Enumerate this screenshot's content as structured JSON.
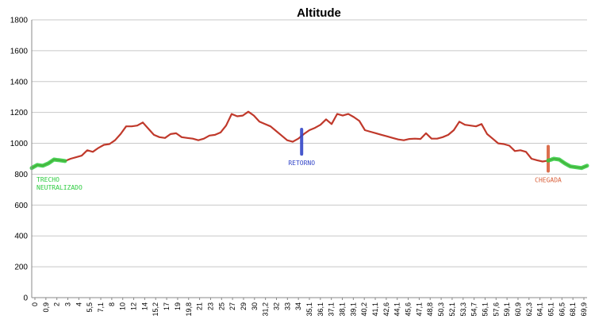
{
  "chart_data": {
    "type": "line",
    "title": "Altitude",
    "xlabel": "",
    "ylabel": "",
    "ylim": [
      0,
      1800
    ],
    "yticks": [
      0,
      200,
      400,
      600,
      800,
      1000,
      1200,
      1400,
      1600,
      1800
    ],
    "grid": true,
    "legend": "none",
    "xtick_labels": [
      "0",
      "0,9",
      "2",
      "3",
      "4",
      "5,5",
      "7,1",
      "8",
      "10",
      "12",
      "14",
      "15,2",
      "17",
      "19",
      "19,8",
      "21",
      "23",
      "25",
      "27",
      "29",
      "30",
      "31,2",
      "32",
      "33",
      "34",
      "35,1",
      "36,1",
      "37,1",
      "38,1",
      "39,1",
      "40,2",
      "41,1",
      "42,6",
      "44,1",
      "45,6",
      "47,1",
      "48,8",
      "50,3",
      "52,1",
      "53,3",
      "54,7",
      "56,1",
      "57,6",
      "59,1",
      "60,9",
      "62,3",
      "64,1",
      "65,1",
      "66,5",
      "68,1",
      "69,9"
    ],
    "series": [
      {
        "color": "#c0392b",
        "x": [
          0,
          0.5,
          1,
          1.5,
          2,
          2.5,
          3,
          3.5,
          4,
          4.5,
          5,
          5.5,
          6,
          6.5,
          7,
          7.5,
          8,
          8.5,
          9,
          9.5,
          10,
          10.5,
          11,
          11.5,
          12,
          12.5,
          13,
          13.5,
          14,
          14.5,
          15,
          15.5,
          16,
          16.5,
          17,
          17.5,
          18,
          18.5,
          19,
          19.5,
          20,
          20.5,
          21,
          21.5,
          22,
          22.5,
          23,
          23.5,
          24,
          24.5,
          25,
          25.5,
          26,
          26.5,
          27,
          27.5,
          28,
          28.5,
          29,
          29.5,
          30,
          30.5,
          31,
          31.5,
          32,
          32.5,
          33,
          33.5,
          34,
          34.5,
          35,
          35.5,
          36,
          36.5,
          37,
          37.5,
          38,
          38.5,
          39,
          39.5,
          40,
          40.5,
          41,
          41.5,
          42,
          42.5,
          43,
          43.5,
          44,
          44.5,
          45,
          45.5,
          46,
          46.5,
          47,
          47.5,
          48,
          48.5,
          49,
          49.5,
          50
        ],
        "values": [
          840,
          860,
          855,
          870,
          895,
          890,
          885,
          900,
          910,
          920,
          955,
          945,
          970,
          990,
          995,
          1020,
          1060,
          1110,
          1110,
          1115,
          1135,
          1095,
          1055,
          1040,
          1035,
          1060,
          1065,
          1040,
          1035,
          1030,
          1020,
          1030,
          1050,
          1055,
          1070,
          1115,
          1190,
          1175,
          1180,
          1205,
          1180,
          1140,
          1125,
          1110,
          1080,
          1050,
          1020,
          1010,
          1030,
          1060,
          1085,
          1100,
          1120,
          1155,
          1125,
          1190,
          1180,
          1190,
          1170,
          1145,
          1085,
          1075,
          1065,
          1055,
          1045,
          1035,
          1025,
          1020,
          1028,
          1030,
          1028,
          1065,
          1030,
          1030,
          1040,
          1055,
          1085,
          1140,
          1120,
          1115,
          1110,
          1125,
          1060,
          1030,
          1000,
          995,
          985,
          950,
          955,
          945,
          900,
          890,
          882,
          888,
          900,
          895,
          870,
          850,
          845,
          840,
          855
        ]
      }
    ],
    "highlights": [
      {
        "label": "TRECHO\nNEUTRALIZADO",
        "x_range": [
          0,
          3
        ],
        "color": "#2ecc40"
      },
      {
        "label": "RETORNO",
        "x": 24.3,
        "y_range": [
          930,
          1090
        ],
        "color": "#3447c8"
      },
      {
        "label": "CHEGADA",
        "x": 46.5,
        "y_range": [
          820,
          980
        ],
        "color": "#d9603b"
      },
      {
        "label": "",
        "x_range": [
          46.5,
          50
        ],
        "color": "#2ecc40"
      }
    ]
  }
}
